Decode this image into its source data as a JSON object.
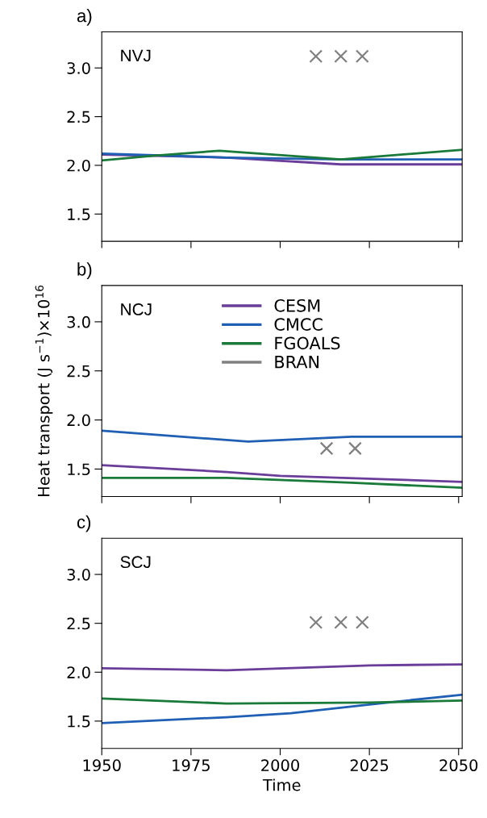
{
  "chart_data": [
    {
      "type": "line",
      "title": "a)",
      "annotations": [
        "NVJ"
      ],
      "xlim": [
        1950,
        2051
      ],
      "xticks": [
        {
          "value": 1950,
          "label": null
        },
        {
          "value": 1975,
          "label": null
        },
        {
          "value": 2000,
          "label": null
        },
        {
          "value": 2025,
          "label": null
        },
        {
          "value": 2050,
          "label": null
        }
      ],
      "ylim": [
        1.22,
        3.37
      ],
      "yticks": [
        {
          "value": 1.5,
          "label": "1.5"
        },
        {
          "value": 2,
          "label": "2.0"
        },
        {
          "value": 2.5,
          "label": "2.5"
        },
        {
          "value": 3,
          "label": "3.0"
        }
      ],
      "tick_labels": "y",
      "grid": false,
      "legend": false,
      "series": [
        {
          "color": "#6a3d9a",
          "x": [
            1950,
            1985,
            2017,
            2051
          ],
          "values": [
            2.11,
            2.08,
            2.01,
            2.01
          ]
        },
        {
          "color": "#1f5fb4",
          "x": [
            1950,
            1985,
            2017,
            2051
          ],
          "values": [
            2.12,
            2.08,
            2.06,
            2.06
          ]
        },
        {
          "color": "#1a7a3a",
          "x": [
            1950,
            1965,
            1983,
            2017,
            2051
          ],
          "values": [
            2.05,
            2.1,
            2.15,
            2.06,
            2.16
          ]
        },
        {
          "type": "scatter",
          "marker": "cross",
          "color": "#808080",
          "x": [
            2010,
            2017,
            2023
          ],
          "values": [
            3.12,
            3.12,
            3.12
          ]
        }
      ]
    },
    {
      "type": "line",
      "title": "b)",
      "annotations": [
        "NCJ"
      ],
      "xlim": [
        1950,
        2051
      ],
      "xticks": [
        {
          "value": 1950,
          "label": null
        },
        {
          "value": 1975,
          "label": null
        },
        {
          "value": 2000,
          "label": null
        },
        {
          "value": 2025,
          "label": null
        },
        {
          "value": 2050,
          "label": null
        }
      ],
      "ylim": [
        1.22,
        3.37
      ],
      "yticks": [
        {
          "value": 1.5,
          "label": "1.5"
        },
        {
          "value": 2,
          "label": "2.0"
        },
        {
          "value": 2.5,
          "label": "2.5"
        },
        {
          "value": 3,
          "label": "3.0"
        }
      ],
      "tick_labels": "y",
      "grid": false,
      "legend": "top",
      "ylabel": "Heat transport (J s$^{−1}$)×10$^{16}$",
      "series": [
        {
          "name": "CESM",
          "color": "#6a3d9a",
          "x": [
            1950,
            1985,
            2000,
            2051
          ],
          "values": [
            1.54,
            1.47,
            1.43,
            1.37
          ]
        },
        {
          "name": "CMCC",
          "color": "#1f5fb4",
          "x": [
            1950,
            1991,
            2020,
            2051
          ],
          "values": [
            1.89,
            1.78,
            1.83,
            1.83
          ]
        },
        {
          "name": "FGOALS",
          "color": "#1a7a3a",
          "x": [
            1950,
            1985,
            2020,
            2051
          ],
          "values": [
            1.41,
            1.41,
            1.36,
            1.31
          ]
        },
        {
          "name": "BRAN",
          "type": "scatter",
          "marker": "cross",
          "color": "#808080",
          "x": [
            2013,
            2021
          ],
          "values": [
            1.71,
            1.71
          ]
        }
      ]
    },
    {
      "type": "line",
      "title": "c)",
      "annotations": [
        "SCJ"
      ],
      "xlabel": "Time",
      "xlim": [
        1950,
        2051
      ],
      "xticks": [
        1950,
        1975,
        2000,
        2025,
        2050
      ],
      "ylim": [
        1.22,
        3.37
      ],
      "yticks": [
        {
          "value": 1.5,
          "label": "1.5"
        },
        {
          "value": 2,
          "label": "2.0"
        },
        {
          "value": 2.5,
          "label": "2.5"
        },
        {
          "value": 3,
          "label": "3.0"
        }
      ],
      "grid": false,
      "legend": false,
      "series": [
        {
          "color": "#6a3d9a",
          "x": [
            1950,
            1985,
            2025,
            2051
          ],
          "values": [
            2.04,
            2.02,
            2.07,
            2.08
          ]
        },
        {
          "color": "#1f5fb4",
          "x": [
            1950,
            1985,
            2003,
            2025,
            2051
          ],
          "values": [
            1.48,
            1.54,
            1.58,
            1.67,
            1.77
          ]
        },
        {
          "color": "#1a7a3a",
          "x": [
            1950,
            1985,
            2025,
            2051
          ],
          "values": [
            1.73,
            1.68,
            1.69,
            1.71
          ]
        },
        {
          "type": "scatter",
          "marker": "cross",
          "color": "#808080",
          "x": [
            2010,
            2017,
            2023
          ],
          "values": [
            2.51,
            2.51,
            2.51
          ]
        }
      ]
    }
  ]
}
